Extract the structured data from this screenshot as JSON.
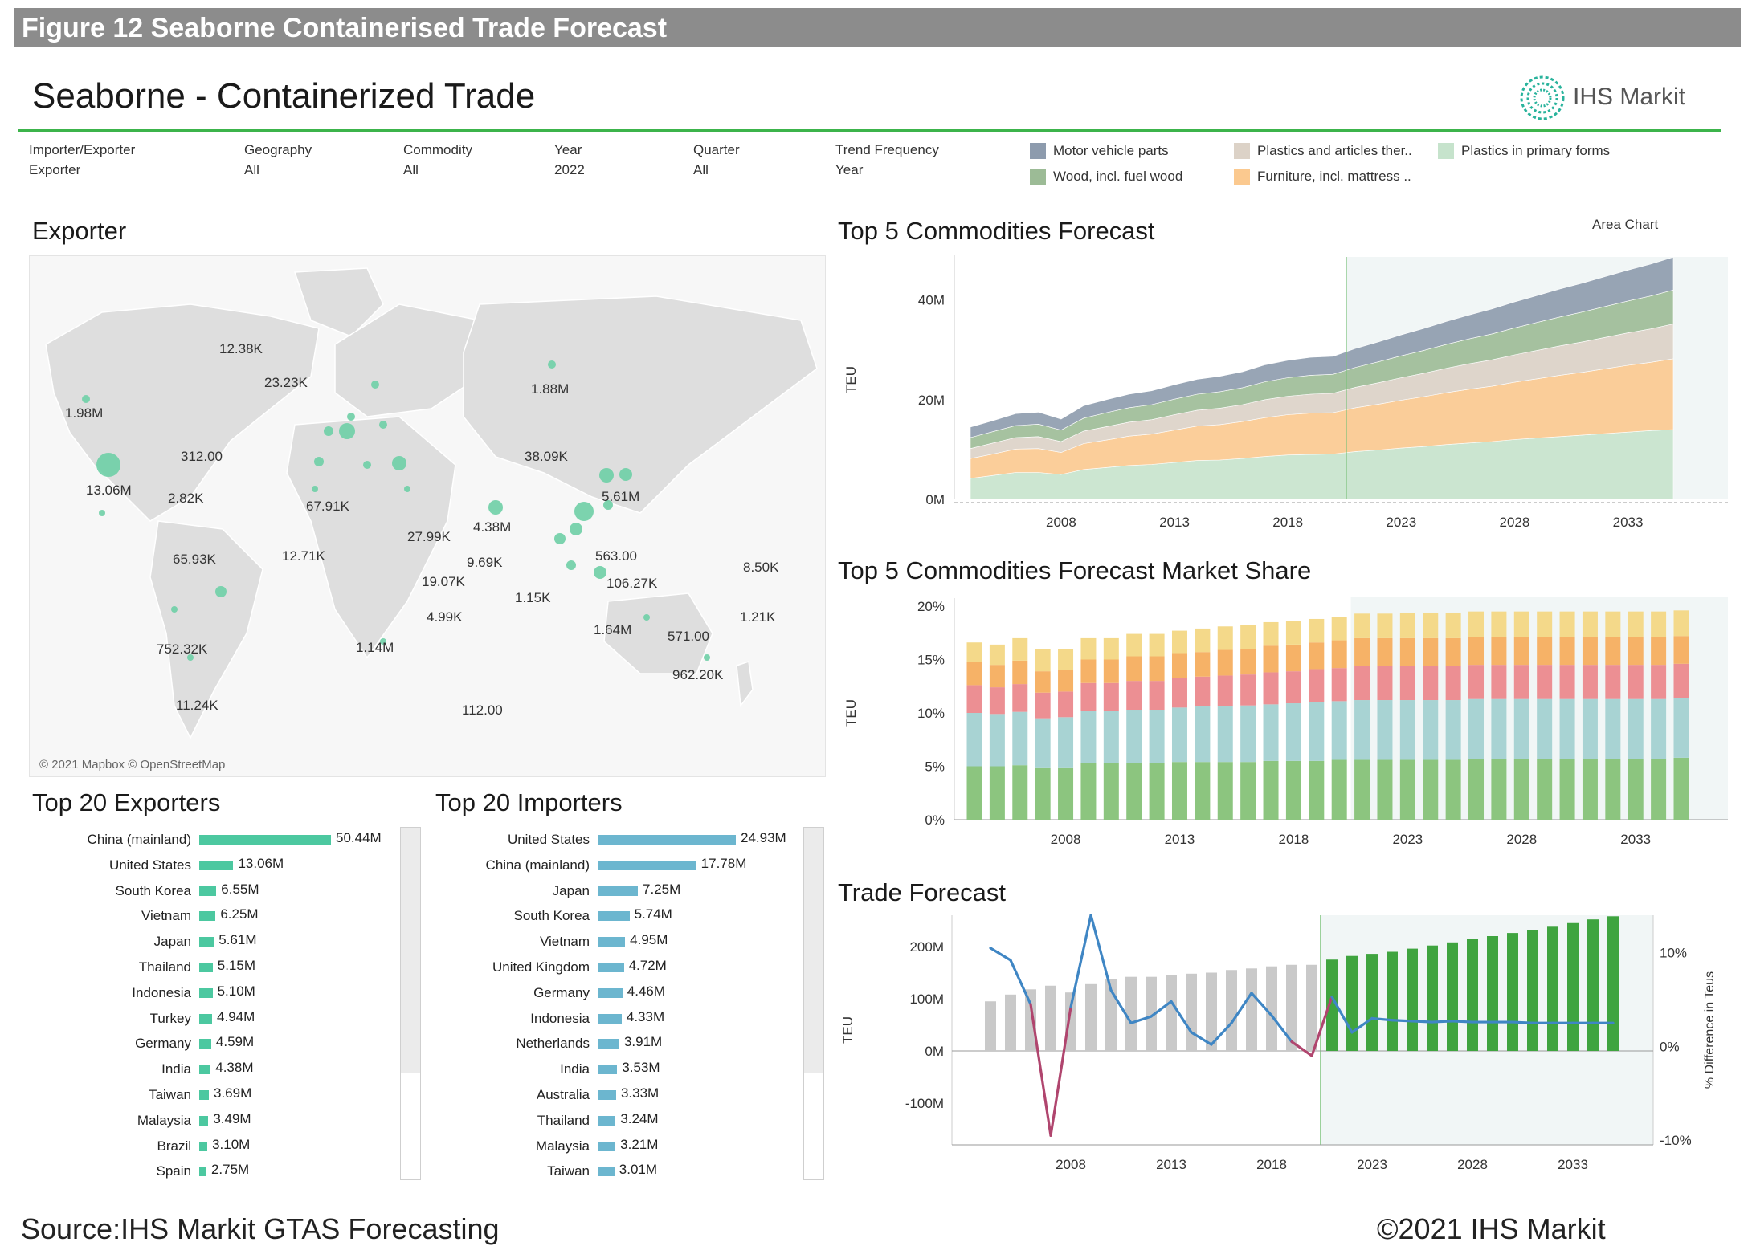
{
  "figure_banner": "Figure 12 Seaborne Containerised Trade Forecast",
  "dashboard_title": "Seaborne - Containerized Trade",
  "logo_text": "IHS Markit",
  "filters": [
    {
      "label": "Importer/Exporter",
      "value": "Exporter"
    },
    {
      "label": "Geography",
      "value": "All"
    },
    {
      "label": "Commodity",
      "value": "All"
    },
    {
      "label": "Year",
      "value": "2022"
    },
    {
      "label": "Quarter",
      "value": "All"
    },
    {
      "label": "Trend Frequency",
      "value": "Year"
    }
  ],
  "legend": [
    {
      "name": "Motor vehicle parts",
      "color": "#8d9bad"
    },
    {
      "name": "Wood, incl. fuel wood",
      "color": "#9cbb96"
    },
    {
      "name": "Plastics and articles ther..",
      "color": "#dcd2c7"
    },
    {
      "name": "Furniture, incl. mattress ..",
      "color": "#fbc98f"
    },
    {
      "name": "Plastics in primary forms",
      "color": "#c6e3cc"
    }
  ],
  "map": {
    "title": "Exporter",
    "credit": "© 2021 Mapbox © OpenStreetMap",
    "labels": [
      "12.38K",
      "23.23K",
      "1.98M",
      "312.00",
      "13.06M",
      "2.82K",
      "67.91K",
      "1.88M",
      "38.09K",
      "5.61M",
      "27.99K",
      "4.38M",
      "65.93K",
      "12.71K",
      "9.69K",
      "19.07K",
      "563.00",
      "106.27K",
      "8.50K",
      "1.15K",
      "4.99K",
      "1.21K",
      "1.64M",
      "571.00",
      "752.32K",
      "1.14M",
      "962.20K",
      "11.24K",
      "112.00"
    ]
  },
  "exporters": {
    "title": "Top 20 Exporters",
    "rows": [
      {
        "name": "China (mainland)",
        "value": 50.44,
        "label": "50.44M"
      },
      {
        "name": "United States",
        "value": 13.06,
        "label": "13.06M"
      },
      {
        "name": "South Korea",
        "value": 6.55,
        "label": "6.55M"
      },
      {
        "name": "Vietnam",
        "value": 6.25,
        "label": "6.25M"
      },
      {
        "name": "Japan",
        "value": 5.61,
        "label": "5.61M"
      },
      {
        "name": "Thailand",
        "value": 5.15,
        "label": "5.15M"
      },
      {
        "name": "Indonesia",
        "value": 5.1,
        "label": "5.10M"
      },
      {
        "name": "Turkey",
        "value": 4.94,
        "label": "4.94M"
      },
      {
        "name": "Germany",
        "value": 4.59,
        "label": "4.59M"
      },
      {
        "name": "India",
        "value": 4.38,
        "label": "4.38M"
      },
      {
        "name": "Taiwan",
        "value": 3.69,
        "label": "3.69M"
      },
      {
        "name": "Malaysia",
        "value": 3.49,
        "label": "3.49M"
      },
      {
        "name": "Brazil",
        "value": 3.1,
        "label": "3.10M"
      },
      {
        "name": "Spain",
        "value": 2.75,
        "label": "2.75M"
      }
    ]
  },
  "importers": {
    "title": "Top 20 Importers",
    "rows": [
      {
        "name": "United States",
        "value": 24.93,
        "label": "24.93M"
      },
      {
        "name": "China (mainland)",
        "value": 17.78,
        "label": "17.78M"
      },
      {
        "name": "Japan",
        "value": 7.25,
        "label": "7.25M"
      },
      {
        "name": "South Korea",
        "value": 5.74,
        "label": "5.74M"
      },
      {
        "name": "Vietnam",
        "value": 4.95,
        "label": "4.95M"
      },
      {
        "name": "United Kingdom",
        "value": 4.72,
        "label": "4.72M"
      },
      {
        "name": "Germany",
        "value": 4.46,
        "label": "4.46M"
      },
      {
        "name": "Indonesia",
        "value": 4.33,
        "label": "4.33M"
      },
      {
        "name": "Netherlands",
        "value": 3.91,
        "label": "3.91M"
      },
      {
        "name": "India",
        "value": 3.53,
        "label": "3.53M"
      },
      {
        "name": "Australia",
        "value": 3.33,
        "label": "3.33M"
      },
      {
        "name": "Thailand",
        "value": 3.24,
        "label": "3.24M"
      },
      {
        "name": "Malaysia",
        "value": 3.21,
        "label": "3.21M"
      },
      {
        "name": "Taiwan",
        "value": 3.01,
        "label": "3.01M"
      }
    ]
  },
  "chart_data": [
    {
      "type": "area",
      "title": "Top 5 Commodities Forecast",
      "chart_type_label": "Area Chart",
      "ylabel": "TEU",
      "x": [
        2004,
        2005,
        2006,
        2007,
        2008,
        2009,
        2010,
        2011,
        2012,
        2013,
        2014,
        2015,
        2016,
        2017,
        2018,
        2019,
        2020,
        2021,
        2022,
        2023,
        2024,
        2025,
        2026,
        2027,
        2028,
        2029,
        2030,
        2031,
        2032,
        2033,
        2034,
        2035
      ],
      "xticks": [
        "2008",
        "2013",
        "2018",
        "2023",
        "2028",
        "2033"
      ],
      "yticks": [
        "0M",
        "20M",
        "40M"
      ],
      "ylim": [
        0,
        48
      ],
      "forecast_start": 2021,
      "series": [
        {
          "name": "Plastics in primary forms",
          "values": [
            4.2,
            4.8,
            5.4,
            5.4,
            5.0,
            6.0,
            6.4,
            6.8,
            7.0,
            7.4,
            7.8,
            7.9,
            8.2,
            8.6,
            8.9,
            9.0,
            9.1,
            9.6,
            9.9,
            10.3,
            10.6,
            11.0,
            11.3,
            11.6,
            12.0,
            12.3,
            12.6,
            12.9,
            13.2,
            13.5,
            13.8,
            14.0
          ]
        },
        {
          "name": "Furniture, incl. mattress ..",
          "values": [
            4.0,
            4.3,
            4.7,
            4.8,
            4.4,
            5.2,
            5.5,
            5.9,
            6.1,
            6.5,
            6.9,
            7.1,
            7.4,
            7.8,
            8.1,
            8.3,
            8.3,
            8.8,
            9.2,
            9.6,
            10.0,
            10.4,
            10.8,
            11.1,
            11.5,
            11.9,
            12.3,
            12.6,
            13.0,
            13.4,
            13.7,
            14.2
          ]
        },
        {
          "name": "Plastics and articles ther..",
          "values": [
            2.0,
            2.2,
            2.3,
            2.4,
            2.2,
            2.5,
            2.7,
            2.8,
            2.9,
            3.1,
            3.2,
            3.3,
            3.4,
            3.6,
            3.7,
            3.8,
            3.9,
            4.1,
            4.3,
            4.5,
            4.7,
            4.9,
            5.1,
            5.3,
            5.5,
            5.7,
            5.9,
            6.1,
            6.3,
            6.5,
            6.7,
            7.0
          ]
        },
        {
          "name": "Wood, incl. fuel wood",
          "values": [
            2.2,
            2.3,
            2.4,
            2.5,
            2.3,
            2.6,
            2.8,
            2.9,
            3.0,
            3.1,
            3.2,
            3.3,
            3.4,
            3.6,
            3.7,
            3.8,
            3.8,
            4.0,
            4.2,
            4.4,
            4.6,
            4.8,
            5.0,
            5.2,
            5.4,
            5.6,
            5.8,
            6.0,
            6.2,
            6.4,
            6.6,
            6.8
          ]
        },
        {
          "name": "Motor vehicle parts",
          "values": [
            2.1,
            2.2,
            2.4,
            2.4,
            2.2,
            2.5,
            2.6,
            2.7,
            2.8,
            2.9,
            3.0,
            3.1,
            3.2,
            3.4,
            3.5,
            3.6,
            3.6,
            3.8,
            4.0,
            4.2,
            4.4,
            4.6,
            4.8,
            5.0,
            5.2,
            5.4,
            5.6,
            5.8,
            6.0,
            6.2,
            6.4,
            6.6
          ]
        }
      ]
    },
    {
      "type": "bar",
      "title": "Top 5 Commodities Forecast Market Share",
      "ylabel": "TEU",
      "x": [
        2004,
        2005,
        2006,
        2007,
        2008,
        2009,
        2010,
        2011,
        2012,
        2013,
        2014,
        2015,
        2016,
        2017,
        2018,
        2019,
        2020,
        2021,
        2022,
        2023,
        2024,
        2025,
        2026,
        2027,
        2028,
        2029,
        2030,
        2031,
        2032,
        2033,
        2034,
        2035
      ],
      "xticks": [
        "2008",
        "2013",
        "2018",
        "2023",
        "2028",
        "2033"
      ],
      "yticks": [
        "0%",
        "5%",
        "10%",
        "15%",
        "20%"
      ],
      "ylim": [
        0,
        20
      ],
      "forecast_start": 2021,
      "series": [
        {
          "name": "green",
          "color": "#8cc57f",
          "values": [
            5.0,
            5.0,
            5.1,
            4.9,
            4.9,
            5.3,
            5.3,
            5.3,
            5.3,
            5.4,
            5.4,
            5.4,
            5.4,
            5.5,
            5.5,
            5.5,
            5.6,
            5.6,
            5.6,
            5.6,
            5.6,
            5.6,
            5.7,
            5.7,
            5.7,
            5.7,
            5.7,
            5.7,
            5.7,
            5.7,
            5.7,
            5.8
          ]
        },
        {
          "name": "teal",
          "color": "#a8d3d3",
          "values": [
            5.0,
            4.9,
            5.0,
            4.6,
            4.7,
            4.9,
            4.9,
            5.0,
            5.0,
            5.1,
            5.2,
            5.2,
            5.3,
            5.3,
            5.4,
            5.5,
            5.5,
            5.6,
            5.6,
            5.6,
            5.6,
            5.6,
            5.6,
            5.6,
            5.6,
            5.6,
            5.6,
            5.6,
            5.6,
            5.6,
            5.6,
            5.6
          ]
        },
        {
          "name": "red",
          "color": "#ec8f93",
          "values": [
            2.6,
            2.5,
            2.6,
            2.4,
            2.4,
            2.6,
            2.6,
            2.7,
            2.7,
            2.8,
            2.8,
            2.9,
            2.9,
            3.0,
            3.0,
            3.1,
            3.1,
            3.2,
            3.2,
            3.2,
            3.2,
            3.2,
            3.2,
            3.2,
            3.2,
            3.2,
            3.2,
            3.2,
            3.2,
            3.2,
            3.2,
            3.2
          ]
        },
        {
          "name": "orange",
          "color": "#f6b267",
          "values": [
            2.2,
            2.1,
            2.2,
            2.0,
            2.0,
            2.2,
            2.2,
            2.3,
            2.3,
            2.3,
            2.3,
            2.4,
            2.4,
            2.5,
            2.5,
            2.5,
            2.6,
            2.6,
            2.6,
            2.6,
            2.6,
            2.6,
            2.6,
            2.6,
            2.6,
            2.6,
            2.6,
            2.6,
            2.6,
            2.6,
            2.6,
            2.6
          ]
        },
        {
          "name": "yellow",
          "color": "#f4d98a",
          "values": [
            1.8,
            1.9,
            2.1,
            2.1,
            2.0,
            2.0,
            2.0,
            2.1,
            2.1,
            2.1,
            2.2,
            2.2,
            2.2,
            2.2,
            2.2,
            2.2,
            2.2,
            2.3,
            2.3,
            2.4,
            2.4,
            2.4,
            2.4,
            2.4,
            2.4,
            2.4,
            2.4,
            2.4,
            2.4,
            2.4,
            2.4,
            2.4
          ]
        }
      ]
    },
    {
      "type": "bar",
      "title": "Trade Forecast",
      "ylabel": "TEU",
      "y2label": "% Difference in Teus",
      "x": [
        2004,
        2005,
        2006,
        2007,
        2008,
        2009,
        2010,
        2011,
        2012,
        2013,
        2014,
        2015,
        2016,
        2017,
        2018,
        2019,
        2020,
        2021,
        2022,
        2023,
        2024,
        2025,
        2026,
        2027,
        2028,
        2029,
        2030,
        2031,
        2032,
        2033,
        2034,
        2035
      ],
      "xticks": [
        "2008",
        "2013",
        "2018",
        "2023",
        "2028",
        "2033"
      ],
      "yticks": [
        "-100M",
        "0M",
        "100M",
        "200M"
      ],
      "y2ticks": [
        "-10%",
        "0%",
        "10%"
      ],
      "ylim": [
        -180,
        260
      ],
      "y2lim": [
        -10.5,
        14
      ],
      "forecast_start": 2021,
      "bars_teu_m": [
        95,
        108,
        118,
        125,
        112,
        128,
        138,
        142,
        142,
        145,
        148,
        150,
        155,
        158,
        162,
        165,
        165,
        175,
        182,
        186,
        190,
        196,
        202,
        208,
        214,
        220,
        226,
        232,
        238,
        245,
        252,
        258
      ],
      "pct_change": [
        10.5,
        9.2,
        4.5,
        -9.5,
        4.2,
        14.0,
        6.0,
        2.5,
        3.2,
        4.8,
        1.5,
        0.2,
        2.5,
        5.7,
        3.3,
        0.5,
        -1.0,
        5.3,
        1.5,
        3.0,
        2.8,
        2.7,
        2.6,
        2.7,
        2.6,
        2.6,
        2.6,
        2.5,
        2.5,
        2.5,
        2.5,
        2.5
      ]
    }
  ],
  "footer": {
    "source": "Source:IHS Markit GTAS Forecasting",
    "copyright": "©2021 IHS Markit"
  }
}
